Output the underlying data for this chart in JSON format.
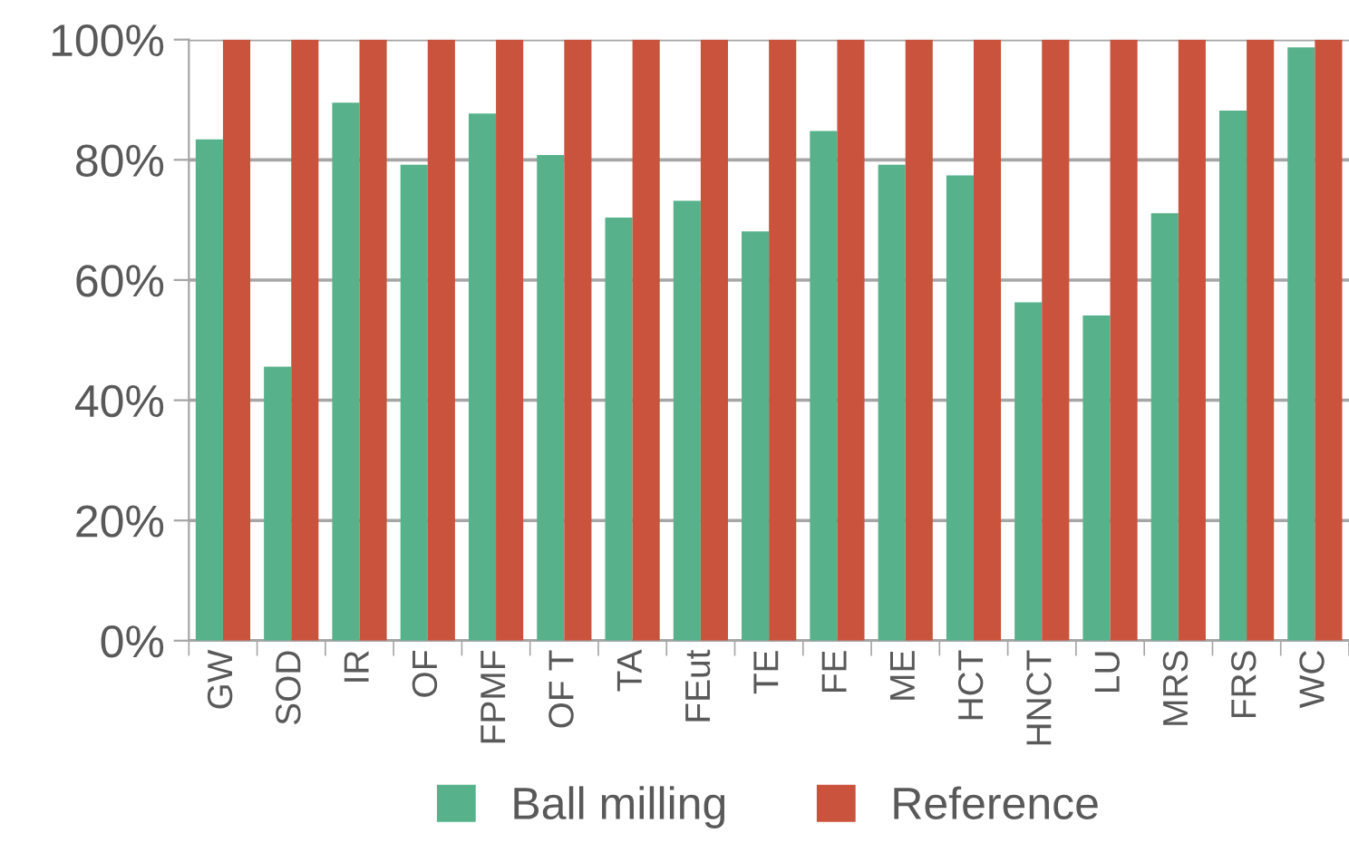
{
  "chart_data": {
    "type": "bar",
    "categories": [
      "GW",
      "SOD",
      "IR",
      "OF",
      "FPMF",
      "OF T",
      "TA",
      "FEut",
      "TE",
      "FE",
      "ME",
      "HCT",
      "HNCT",
      "LU",
      "MRS",
      "FRS",
      "WC"
    ],
    "series": [
      {
        "name": "Ball milling",
        "color": "#57b28b",
        "values": [
          83.4,
          45.6,
          89.5,
          79.2,
          87.7,
          80.8,
          70.4,
          73.2,
          68.1,
          84.8,
          79.2,
          77.4,
          56.3,
          54.1,
          71.1,
          88.2,
          98.7
        ]
      },
      {
        "name": "Reference",
        "color": "#c9533d",
        "values": [
          100,
          100,
          100,
          100,
          100,
          100,
          100,
          100,
          100,
          100,
          100,
          100,
          100,
          100,
          100,
          100,
          100
        ]
      }
    ],
    "ylim": [
      0,
      100
    ],
    "yticks": [
      {
        "value": 0,
        "label": "0%"
      },
      {
        "value": 20,
        "label": "20%"
      },
      {
        "value": 40,
        "label": "40%"
      },
      {
        "value": 60,
        "label": "60%"
      },
      {
        "value": 80,
        "label": "80%"
      },
      {
        "value": 100,
        "label": "100%"
      }
    ],
    "grid": "y",
    "legend": "bottom"
  }
}
